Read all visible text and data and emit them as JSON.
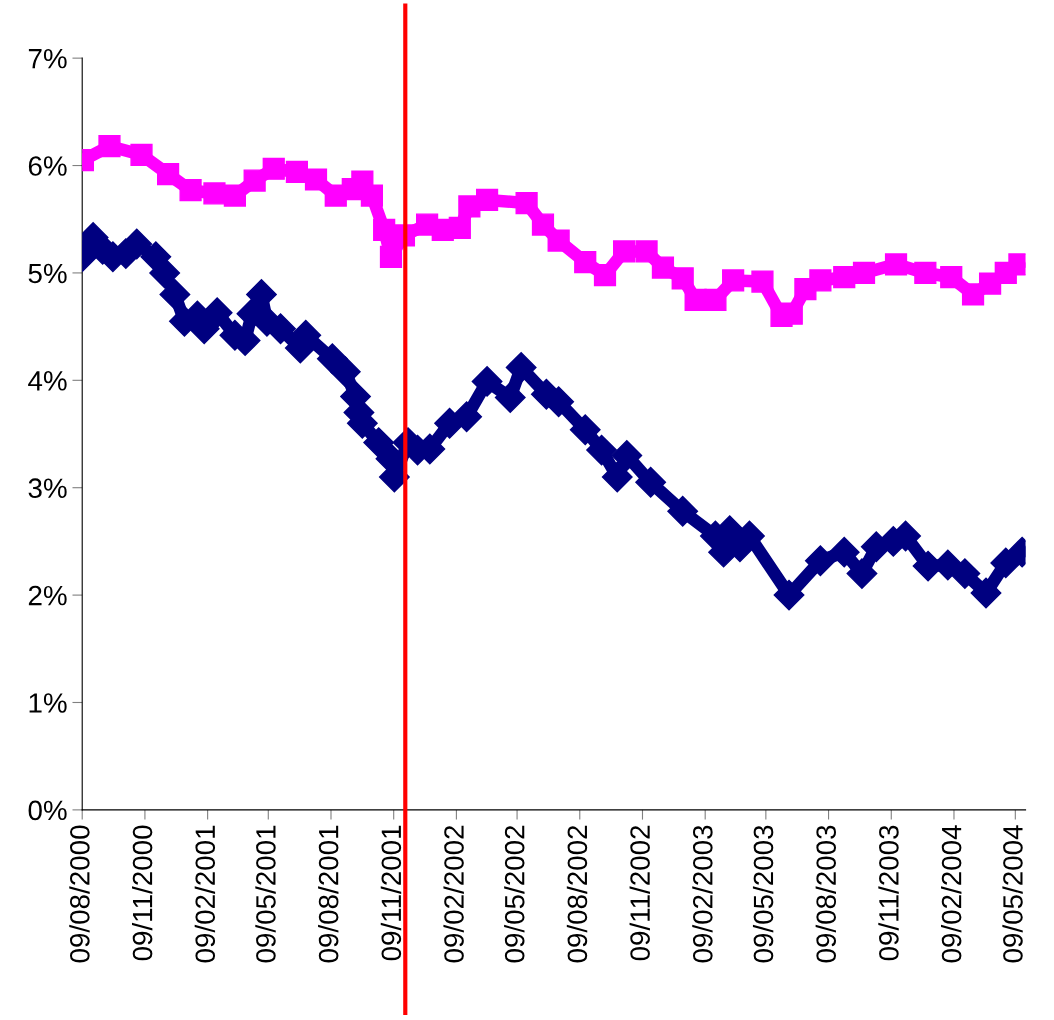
{
  "chart_data": {
    "type": "line",
    "xlim": [
      "2000-08-09",
      "2004-05-24"
    ],
    "xticks": [
      {
        "value": "2000-08-09",
        "label": "09/08/2000"
      },
      {
        "value": "2000-11-09",
        "label": "09/11/2000"
      },
      {
        "value": "2001-02-09",
        "label": "09/02/2001"
      },
      {
        "value": "2001-05-09",
        "label": "09/05/2001"
      },
      {
        "value": "2001-08-09",
        "label": "09/08/2001"
      },
      {
        "value": "2001-11-09",
        "label": "09/11/2001"
      },
      {
        "value": "2002-02-09",
        "label": "09/02/2002"
      },
      {
        "value": "2002-05-09",
        "label": "09/05/2002"
      },
      {
        "value": "2002-08-09",
        "label": "09/08/2002"
      },
      {
        "value": "2002-11-09",
        "label": "09/11/2002"
      },
      {
        "value": "2003-02-09",
        "label": "09/02/2003"
      },
      {
        "value": "2003-05-09",
        "label": "09/05/2003"
      },
      {
        "value": "2003-08-09",
        "label": "09/08/2003"
      },
      {
        "value": "2003-11-09",
        "label": "09/11/2003"
      },
      {
        "value": "2004-02-09",
        "label": "09/02/2004"
      },
      {
        "value": "2004-05-09",
        "label": "09/05/2004"
      }
    ],
    "ylim": [
      0,
      7
    ],
    "yticks": [
      {
        "value": 0,
        "label": "0%"
      },
      {
        "value": 1,
        "label": "1%"
      },
      {
        "value": 2,
        "label": "2%"
      },
      {
        "value": 3,
        "label": "3%"
      },
      {
        "value": 4,
        "label": "4%"
      },
      {
        "value": 5,
        "label": "5%"
      },
      {
        "value": 6,
        "label": "6%"
      },
      {
        "value": 7,
        "label": "7%"
      }
    ],
    "grid": false,
    "legend": false,
    "line_style": "solid",
    "series": [
      {
        "color": "#ff00ff",
        "marker": "square",
        "x": [
          "2000-08-10",
          "2000-09-18",
          "2000-11-04",
          "2000-12-13",
          "2001-01-15",
          "2001-02-19",
          "2001-03-21",
          "2001-04-19",
          "2001-05-17",
          "2001-06-20",
          "2001-07-18",
          "2001-08-16",
          "2001-09-10",
          "2001-09-24",
          "2001-10-08",
          "2001-10-26",
          "2001-11-05",
          "2001-11-24",
          "2001-12-28",
          "2002-01-20",
          "2002-02-14",
          "2002-02-28",
          "2002-03-26",
          "2002-05-23",
          "2002-06-16",
          "2002-07-09",
          "2002-08-17",
          "2002-09-15",
          "2002-10-13",
          "2002-11-15",
          "2002-12-09",
          "2003-01-07",
          "2003-01-26",
          "2003-02-24",
          "2003-03-22",
          "2003-05-04",
          "2003-06-01",
          "2003-06-16",
          "2003-07-06",
          "2003-07-28",
          "2003-09-01",
          "2003-09-30",
          "2003-11-16",
          "2003-12-29",
          "2004-02-05",
          "2004-03-08",
          "2004-04-02",
          "2004-04-25",
          "2004-05-15"
        ],
        "values": [
          6.05,
          6.18,
          6.1,
          5.92,
          5.77,
          5.74,
          5.72,
          5.86,
          5.97,
          5.94,
          5.87,
          5.72,
          5.78,
          5.85,
          5.72,
          5.4,
          5.15,
          5.35,
          5.45,
          5.4,
          5.42,
          5.62,
          5.68,
          5.65,
          5.45,
          5.3,
          5.1,
          4.98,
          5.2,
          5.2,
          5.05,
          4.95,
          4.75,
          4.75,
          4.93,
          4.92,
          4.6,
          4.62,
          4.85,
          4.93,
          4.96,
          5.0,
          5.08,
          5.0,
          4.96,
          4.8,
          4.9,
          5.0,
          5.08
        ]
      },
      {
        "color": "#000080",
        "marker": "diamond",
        "x": [
          "2000-08-09",
          "2000-08-25",
          "2000-09-08",
          "2000-09-23",
          "2000-10-12",
          "2000-10-28",
          "2000-11-25",
          "2000-12-08",
          "2000-12-23",
          "2001-01-06",
          "2001-01-25",
          "2001-02-04",
          "2001-02-23",
          "2001-03-21",
          "2001-04-05",
          "2001-04-15",
          "2001-04-29",
          "2001-05-07",
          "2001-05-27",
          "2001-06-25",
          "2001-07-03",
          "2001-08-11",
          "2001-08-30",
          "2001-09-14",
          "2001-09-19",
          "2001-09-24",
          "2001-10-18",
          "2001-11-05",
          "2001-11-10",
          "2001-11-30",
          "2001-12-14",
          "2002-01-01",
          "2002-01-30",
          "2002-02-24",
          "2002-03-26",
          "2002-04-29",
          "2002-05-15",
          "2002-06-21",
          "2002-07-09",
          "2002-08-17",
          "2002-09-10",
          "2002-10-03",
          "2002-10-17",
          "2002-11-21",
          "2003-01-07",
          "2003-02-24",
          "2003-03-08",
          "2003-03-17",
          "2003-04-01",
          "2003-04-15",
          "2003-06-12",
          "2003-07-28",
          "2003-09-01",
          "2003-09-27",
          "2003-10-18",
          "2003-11-12",
          "2003-11-30",
          "2004-01-02",
          "2004-01-31",
          "2004-02-25",
          "2004-03-27",
          "2004-04-25",
          "2004-05-19"
        ],
        "values": [
          5.15,
          5.33,
          5.22,
          5.15,
          5.18,
          5.27,
          5.15,
          5.0,
          4.8,
          4.55,
          4.6,
          4.48,
          4.63,
          4.42,
          4.37,
          4.62,
          4.8,
          4.55,
          4.48,
          4.3,
          4.42,
          4.2,
          4.08,
          3.85,
          3.7,
          3.6,
          3.42,
          3.27,
          3.1,
          3.42,
          3.35,
          3.36,
          3.6,
          3.66,
          3.99,
          3.84,
          4.12,
          3.87,
          3.8,
          3.54,
          3.35,
          3.1,
          3.3,
          3.05,
          2.78,
          2.55,
          2.4,
          2.6,
          2.45,
          2.55,
          2.0,
          2.32,
          2.4,
          2.2,
          2.45,
          2.5,
          2.55,
          2.27,
          2.28,
          2.2,
          2.02,
          2.3,
          2.4
        ]
      }
    ],
    "ref_lines": [
      {
        "axis": "x",
        "value": "2001-11-26",
        "color": "#ff0000",
        "line_style": "solid"
      }
    ]
  }
}
